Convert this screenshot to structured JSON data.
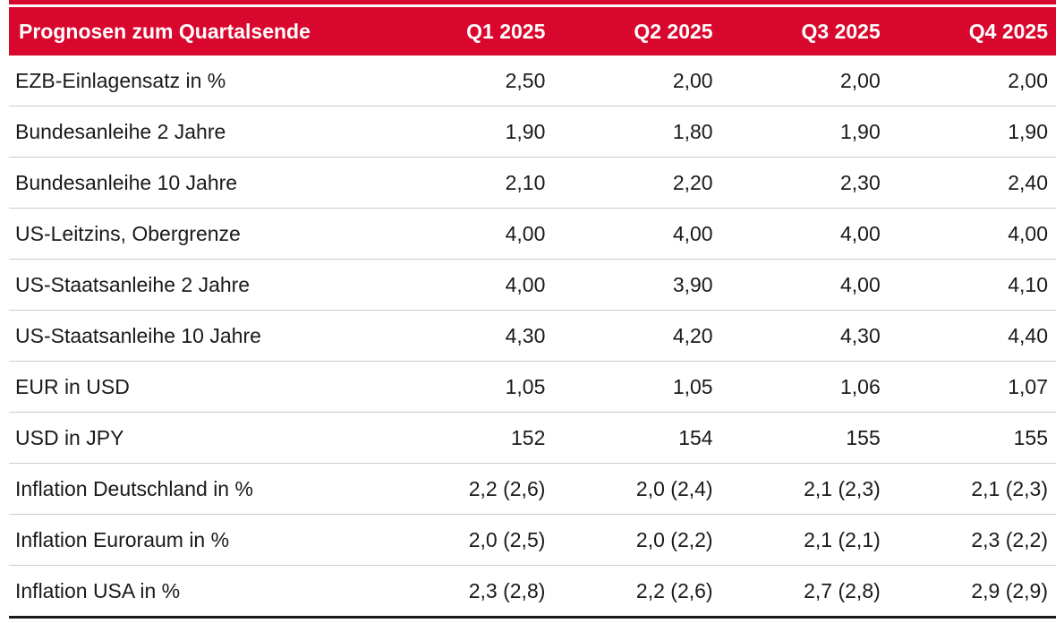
{
  "colors": {
    "header_red": "#d9072d",
    "header_text": "#ffffff",
    "text": "#1a1a1a",
    "row_separator": "#cccccc",
    "bottom_border": "#1a1a1a"
  },
  "table": {
    "title": "Prognosen zum Quartalsende",
    "columns": [
      "Q1 2025",
      "Q2 2025",
      "Q3 2025",
      "Q4 2025"
    ],
    "rows": [
      {
        "label": "EZB-Einlagensatz in %",
        "values": [
          "2,50",
          "2,00",
          "2,00",
          "2,00"
        ]
      },
      {
        "label": "Bundesanleihe 2 Jahre",
        "values": [
          "1,90",
          "1,80",
          "1,90",
          "1,90"
        ]
      },
      {
        "label": "Bundesanleihe 10 Jahre",
        "values": [
          "2,10",
          "2,20",
          "2,30",
          "2,40"
        ]
      },
      {
        "label": "US-Leitzins, Obergrenze",
        "values": [
          "4,00",
          "4,00",
          "4,00",
          "4,00"
        ]
      },
      {
        "label": "US-Staatsanleihe 2 Jahre",
        "values": [
          "4,00",
          "3,90",
          "4,00",
          "4,10"
        ]
      },
      {
        "label": "US-Staatsanleihe 10 Jahre",
        "values": [
          "4,30",
          "4,20",
          "4,30",
          "4,40"
        ]
      },
      {
        "label": "EUR in USD",
        "values": [
          "1,05",
          "1,05",
          "1,06",
          "1,07"
        ]
      },
      {
        "label": "USD in JPY",
        "values": [
          "152",
          "154",
          "155",
          "155"
        ]
      },
      {
        "label": "Inflation Deutschland in %",
        "values": [
          "2,2 (2,6)",
          "2,0 (2,4)",
          "2,1 (2,3)",
          "2,1 (2,3)"
        ]
      },
      {
        "label": "Inflation Euroraum in %",
        "values": [
          "2,0 (2,5)",
          "2,0 (2,2)",
          "2,1 (2,1)",
          "2,3 (2,2)"
        ]
      },
      {
        "label": "Inflation USA in %",
        "values": [
          "2,3 (2,8)",
          "2,2 (2,6)",
          "2,7 (2,8)",
          "2,9 (2,9)"
        ]
      }
    ]
  },
  "chart_data": {
    "type": "table",
    "title": "Prognosen zum Quartalsende",
    "columns": [
      "Prognosen zum Quartalsende",
      "Q1 2025",
      "Q2 2025",
      "Q3 2025",
      "Q4 2025"
    ],
    "rows": [
      [
        "EZB-Einlagensatz in %",
        "2,50",
        "2,00",
        "2,00",
        "2,00"
      ],
      [
        "Bundesanleihe 2 Jahre",
        "1,90",
        "1,80",
        "1,90",
        "1,90"
      ],
      [
        "Bundesanleihe 10 Jahre",
        "2,10",
        "2,20",
        "2,30",
        "2,40"
      ],
      [
        "US-Leitzins, Obergrenze",
        "4,00",
        "4,00",
        "4,00",
        "4,00"
      ],
      [
        "US-Staatsanleihe 2 Jahre",
        "4,00",
        "3,90",
        "4,00",
        "4,10"
      ],
      [
        "US-Staatsanleihe 10 Jahre",
        "4,30",
        "4,20",
        "4,30",
        "4,40"
      ],
      [
        "EUR in USD",
        "1,05",
        "1,05",
        "1,06",
        "1,07"
      ],
      [
        "USD in JPY",
        "152",
        "154",
        "155",
        "155"
      ],
      [
        "Inflation Deutschland in %",
        "2,2 (2,6)",
        "2,0 (2,4)",
        "2,1 (2,3)",
        "2,1 (2,3)"
      ],
      [
        "Inflation Euroraum in %",
        "2,0 (2,5)",
        "2,0 (2,2)",
        "2,1 (2,1)",
        "2,3 (2,2)"
      ],
      [
        "Inflation USA in %",
        "2,3 (2,8)",
        "2,2 (2,6)",
        "2,7 (2,8)",
        "2,9 (2,9)"
      ]
    ],
    "layout": {
      "header_background": "#d9072d",
      "header_text_color": "#ffffff",
      "numeric_alignment": "right",
      "row_separators": true,
      "bottom_rule": true
    }
  }
}
